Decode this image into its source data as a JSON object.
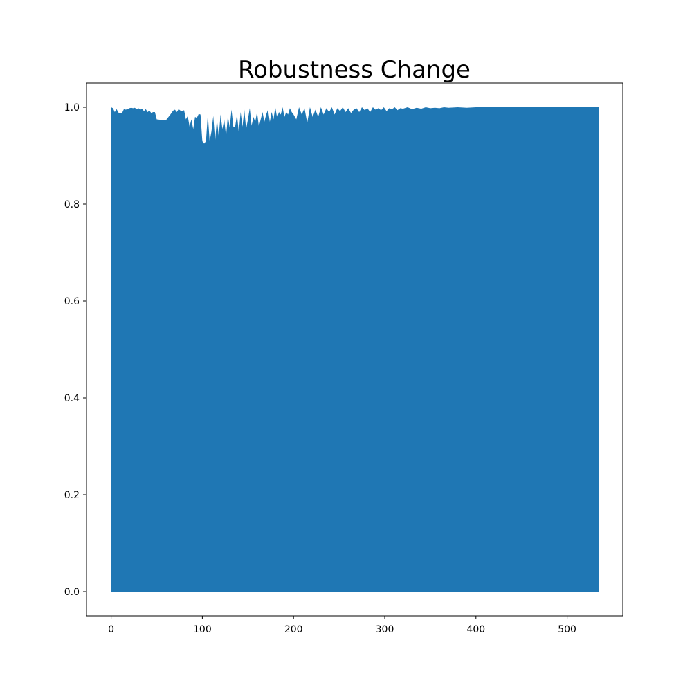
{
  "chart_data": {
    "type": "area",
    "title": "Robustness Change",
    "xlabel": "",
    "ylabel": "",
    "xlim": [
      -27,
      561
    ],
    "ylim": [
      -0.05,
      1.05
    ],
    "xticks": [
      0,
      100,
      200,
      300,
      400,
      500
    ],
    "yticks": [
      0.0,
      0.2,
      0.4,
      0.6,
      0.8,
      1.0
    ],
    "xtick_labels": [
      "0",
      "100",
      "200",
      "300",
      "400",
      "500"
    ],
    "ytick_labels": [
      "0.0",
      "0.2",
      "0.4",
      "0.6",
      "0.8",
      "1.0"
    ],
    "grid": false,
    "fill_color": "#1f77b4",
    "series": [
      {
        "x": [
          0,
          2,
          4,
          6,
          8,
          10,
          12,
          14,
          16,
          18,
          20,
          22,
          24,
          26,
          28,
          30,
          32,
          34,
          36,
          38,
          40,
          42,
          44,
          46,
          48,
          50,
          55,
          60,
          65,
          68,
          70,
          72,
          74,
          76,
          78,
          80,
          82,
          84,
          86,
          88,
          90,
          92,
          94,
          96,
          98,
          100,
          102,
          104,
          106,
          108,
          110,
          112,
          114,
          116,
          118,
          120,
          122,
          124,
          126,
          128,
          130,
          132,
          134,
          136,
          138,
          140,
          142,
          144,
          146,
          148,
          150,
          152,
          154,
          156,
          158,
          160,
          162,
          164,
          166,
          168,
          170,
          172,
          174,
          176,
          178,
          180,
          182,
          184,
          186,
          188,
          190,
          192,
          194,
          196,
          198,
          200,
          203,
          206,
          209,
          212,
          215,
          218,
          221,
          224,
          227,
          230,
          233,
          236,
          239,
          242,
          245,
          248,
          251,
          254,
          257,
          260,
          263,
          266,
          269,
          272,
          275,
          278,
          281,
          284,
          287,
          290,
          293,
          296,
          299,
          302,
          305,
          308,
          311,
          314,
          317,
          320,
          325,
          330,
          335,
          340,
          345,
          350,
          355,
          360,
          365,
          370,
          380,
          390,
          400,
          420,
          440,
          460,
          480,
          500,
          520,
          535
        ],
        "y": [
          1.0,
          0.998,
          0.99,
          0.996,
          0.989,
          0.988,
          0.988,
          0.996,
          0.995,
          0.996,
          0.998,
          0.999,
          0.998,
          0.999,
          0.996,
          0.998,
          0.995,
          0.997,
          0.992,
          0.996,
          0.99,
          0.993,
          0.988,
          0.99,
          0.99,
          0.975,
          0.974,
          0.973,
          0.985,
          0.993,
          0.995,
          0.99,
          0.996,
          0.993,
          0.992,
          0.994,
          0.975,
          0.982,
          0.96,
          0.975,
          0.955,
          0.98,
          0.978,
          0.986,
          0.985,
          0.93,
          0.925,
          0.93,
          0.985,
          0.93,
          0.95,
          0.982,
          0.93,
          0.975,
          0.94,
          0.985,
          0.955,
          0.975,
          0.94,
          0.982,
          0.958,
          0.995,
          0.96,
          0.96,
          0.985,
          0.948,
          0.99,
          0.96,
          0.995,
          0.955,
          0.975,
          0.998,
          0.962,
          0.98,
          0.97,
          0.99,
          0.96,
          0.975,
          0.99,
          0.97,
          0.985,
          0.995,
          0.97,
          0.99,
          0.975,
          1.0,
          0.978,
          0.99,
          0.985,
          1.0,
          0.98,
          0.99,
          0.985,
          0.998,
          0.99,
          0.985,
          0.975,
          1.0,
          0.985,
          0.998,
          0.968,
          1.0,
          0.98,
          0.995,
          0.98,
          1.0,
          0.985,
          0.998,
          0.99,
          1.0,
          0.985,
          0.998,
          0.992,
          1.0,
          0.99,
          0.998,
          0.988,
          0.995,
          0.998,
          0.99,
          1.0,
          0.994,
          0.998,
          0.99,
          1.0,
          0.995,
          0.998,
          0.994,
          1.0,
          0.992,
          0.998,
          0.996,
          1.0,
          0.994,
          0.998,
          0.997,
          1.0,
          0.996,
          0.999,
          0.997,
          1.0,
          0.998,
          0.999,
          0.998,
          1.0,
          0.999,
          1.0,
          0.999,
          1.0,
          1.0,
          1.0,
          1.0,
          1.0,
          1.0,
          1.0,
          1.0
        ]
      }
    ]
  }
}
